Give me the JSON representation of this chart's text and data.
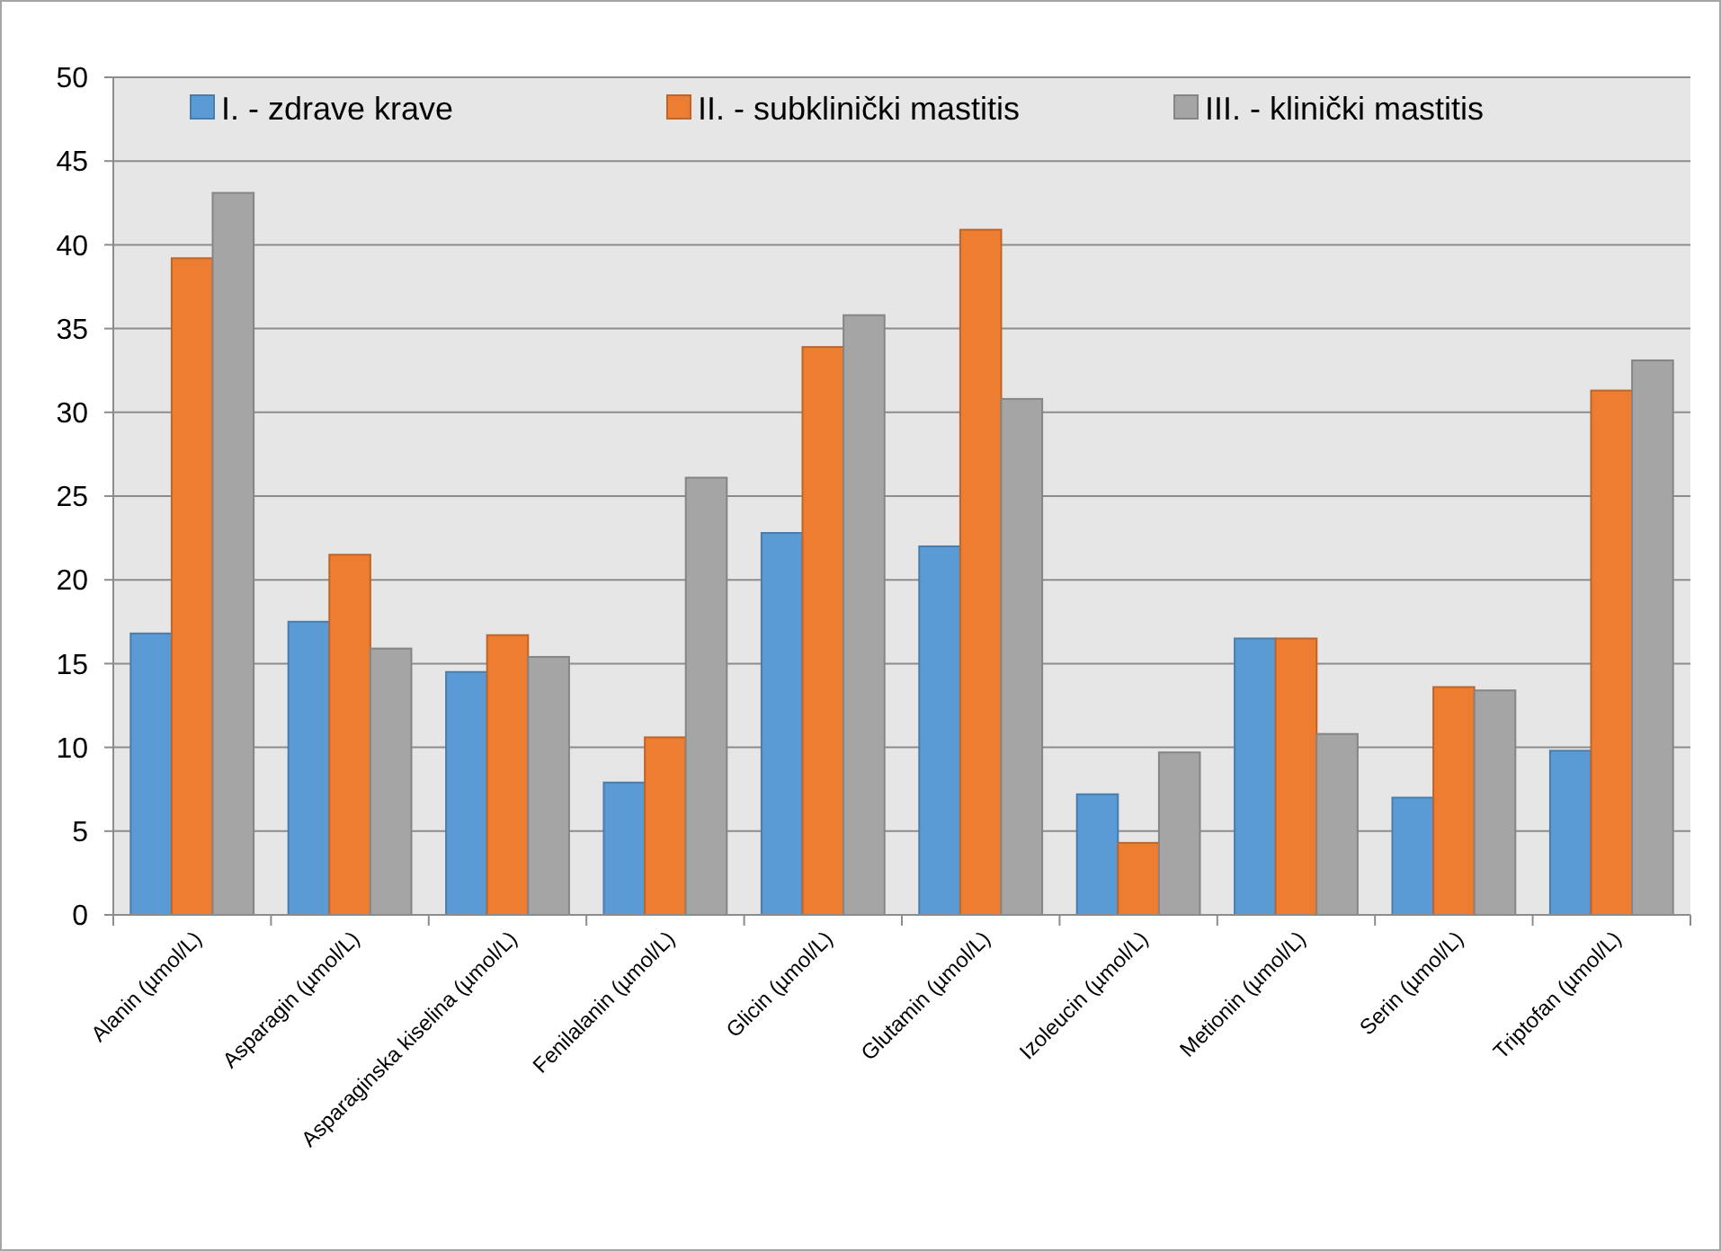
{
  "chart_data": {
    "type": "bar",
    "categories": [
      "Alanin (µmol/L)",
      "Asparagin (µmol/L)",
      "Asparaginska kiselina (µmol/L)",
      "Fenilalanin (µmol/L)",
      "Glicin (µmol/L)",
      "Glutamin (µmol/L)",
      "Izoleucin (µmol/L)",
      "Metionin (µmol/L)",
      "Serin (µmol/L)",
      "Triptofan (µmol/L)"
    ],
    "series": [
      {
        "name": "I. - zdrave krave",
        "color": "#5b9bd5",
        "values": [
          16.8,
          17.5,
          14.5,
          7.9,
          22.8,
          22.0,
          7.2,
          16.5,
          7.0,
          9.8
        ]
      },
      {
        "name": "II. - subklinički mastitis",
        "color": "#ed7d31",
        "values": [
          39.2,
          21.5,
          16.7,
          10.6,
          33.9,
          40.9,
          4.3,
          16.5,
          13.6,
          31.3
        ]
      },
      {
        "name": "III. - klinički mastitis",
        "color": "#a5a5a5",
        "values": [
          43.1,
          15.9,
          15.4,
          26.1,
          35.8,
          30.8,
          9.7,
          10.8,
          13.4,
          33.1
        ]
      }
    ],
    "ylim": [
      0,
      50
    ],
    "yticks": [
      0,
      5,
      10,
      15,
      20,
      25,
      30,
      35,
      40,
      45,
      50
    ],
    "grid": "y",
    "legend": "top"
  }
}
